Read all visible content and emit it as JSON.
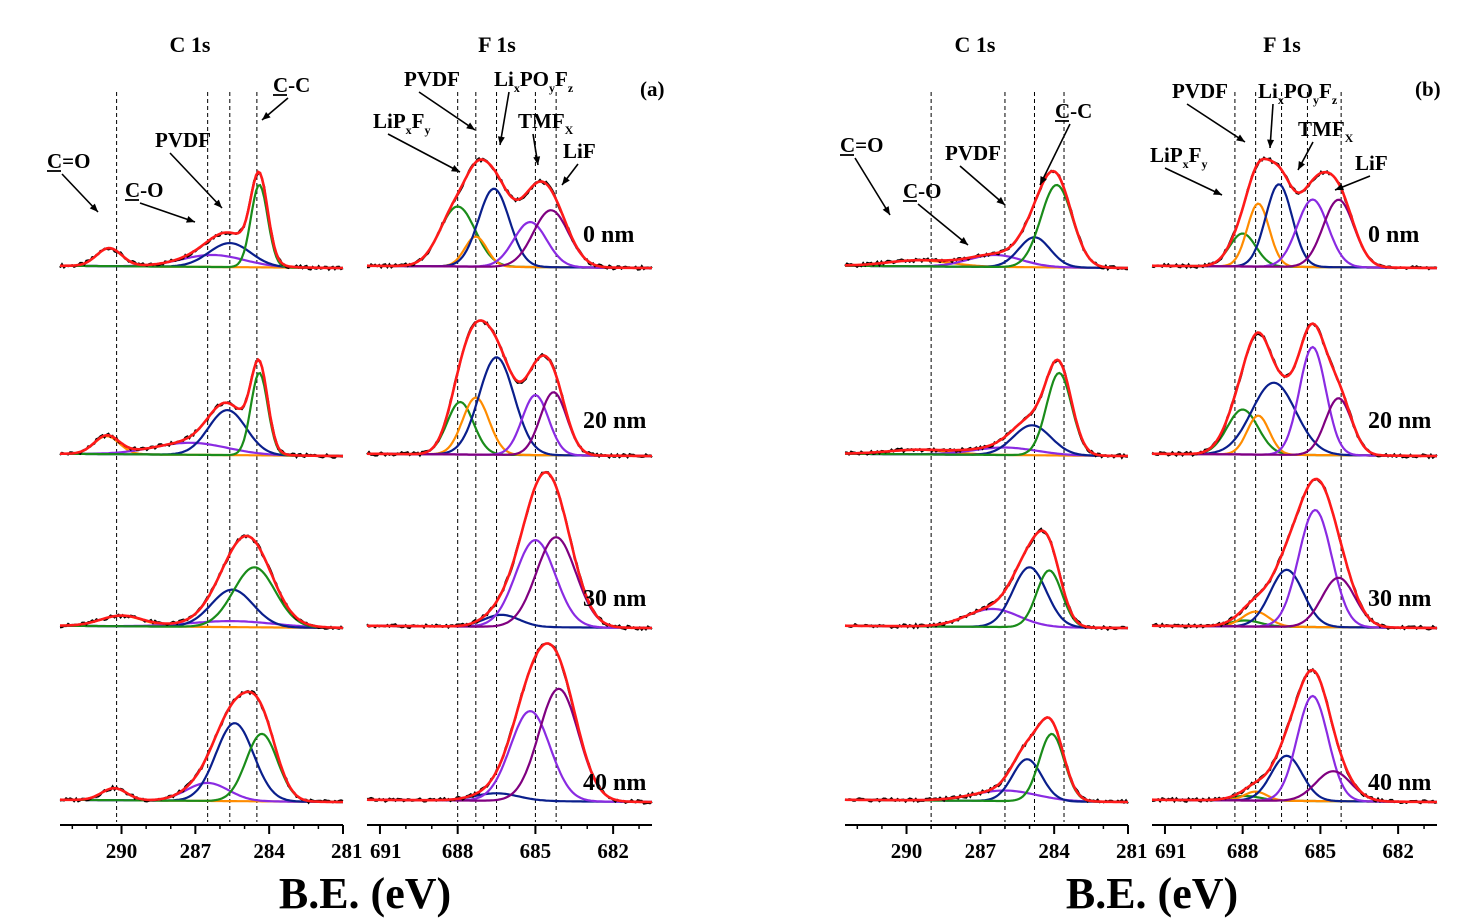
{
  "chart_data": {
    "type": "line",
    "x_unit": "B.E. (eV)",
    "x_label": "B.E. (eV)",
    "depths": [
      "0 nm",
      "20 nm",
      "30 nm",
      "40 nm"
    ],
    "colors": {
      "experimental": "#000000",
      "envelope": "#ff1a1a",
      "C-C": "#1a8c1a",
      "PVDF": "#0a1f8c",
      "C-O": "#8a2be2",
      "C=O": "#ff8c00",
      "LiPxFy": "#1a8c1a",
      "PVDF_F": "#ff8c00",
      "LixPOyFz": "#0a1f8c",
      "TMFx": "#8a2be2",
      "LiF": "#800080"
    },
    "panels": [
      {
        "label": "(a)",
        "regions": [
          {
            "title": "C 1s",
            "xlim": [
              292.5,
              281
            ],
            "ticks": [
              "290",
              "287",
              "284",
              "281"
            ],
            "tick_values": [
              290,
              287,
              284,
              281
            ],
            "components": [
              "C=O",
              "C-O",
              "PVDF",
              "C-C"
            ],
            "component_labels": [
              {
                "label": "C=O",
                "underline": "C"
              },
              {
                "label": "C-O",
                "underline": "C"
              },
              {
                "label": "PVDF",
                "underline": ""
              },
              {
                "label": "C-C",
                "underline": "C"
              }
            ],
            "reference_lines": [
              290.2,
              286.5,
              285.6,
              284.5
            ],
            "spectra": [
              {
                "depth": "0 nm",
                "peaks": [
                  {
                    "name": "C=O",
                    "center": 290.5,
                    "height": 0.12,
                    "fwhm": 1.2
                  },
                  {
                    "name": "C-O",
                    "center": 286.3,
                    "height": 0.08,
                    "fwhm": 3.0
                  },
                  {
                    "name": "PVDF",
                    "center": 285.6,
                    "height": 0.16,
                    "fwhm": 2.0
                  },
                  {
                    "name": "C-C",
                    "center": 284.4,
                    "height": 0.55,
                    "fwhm": 0.8
                  }
                ]
              },
              {
                "depth": "20 nm",
                "peaks": [
                  {
                    "name": "C=O",
                    "center": 290.6,
                    "height": 0.12,
                    "fwhm": 1.2
                  },
                  {
                    "name": "C-O",
                    "center": 287.2,
                    "height": 0.08,
                    "fwhm": 3.5
                  },
                  {
                    "name": "PVDF",
                    "center": 285.7,
                    "height": 0.3,
                    "fwhm": 1.8
                  },
                  {
                    "name": "C-C",
                    "center": 284.4,
                    "height": 0.55,
                    "fwhm": 0.8
                  }
                ]
              },
              {
                "depth": "30 nm",
                "peaks": [
                  {
                    "name": "C=O",
                    "center": 290.0,
                    "height": 0.07,
                    "fwhm": 2.0
                  },
                  {
                    "name": "C-O",
                    "center": 285.5,
                    "height": 0.04,
                    "fwhm": 4.0
                  },
                  {
                    "name": "PVDF",
                    "center": 285.5,
                    "height": 0.25,
                    "fwhm": 2.0
                  },
                  {
                    "name": "C-C",
                    "center": 284.6,
                    "height": 0.4,
                    "fwhm": 2.0
                  }
                ]
              },
              {
                "depth": "40 nm",
                "peaks": [
                  {
                    "name": "C=O",
                    "center": 290.3,
                    "height": 0.08,
                    "fwhm": 1.2
                  },
                  {
                    "name": "C-O",
                    "center": 286.5,
                    "height": 0.12,
                    "fwhm": 2.0
                  },
                  {
                    "name": "PVDF",
                    "center": 285.4,
                    "height": 0.52,
                    "fwhm": 1.8
                  },
                  {
                    "name": "C-C",
                    "center": 284.3,
                    "height": 0.45,
                    "fwhm": 1.5
                  }
                ]
              }
            ]
          },
          {
            "title": "F 1s",
            "xlim": [
              691.5,
              680.5
            ],
            "ticks": [
              "691",
              "688",
              "685",
              "682"
            ],
            "tick_values": [
              691,
              688,
              685,
              682
            ],
            "components": [
              "LiPxFy",
              "PVDF_F",
              "LixPOyFz",
              "TMFx",
              "LiF"
            ],
            "component_labels": [
              {
                "label": "LiPxFy"
              },
              {
                "label": "PVDF"
              },
              {
                "label": "LixPOyFz"
              },
              {
                "label": "TMFx"
              },
              {
                "label": "LiF"
              }
            ],
            "reference_lines": [
              688.0,
              687.3,
              686.5,
              685.0,
              684.2
            ],
            "spectra": [
              {
                "depth": "0 nm",
                "peaks": [
                  {
                    "name": "LiPxFy",
                    "center": 688.0,
                    "height": 0.4,
                    "fwhm": 1.6
                  },
                  {
                    "name": "PVDF_F",
                    "center": 687.3,
                    "height": 0.2,
                    "fwhm": 1.0
                  },
                  {
                    "name": "LixPOyFz",
                    "center": 686.6,
                    "height": 0.52,
                    "fwhm": 1.4
                  },
                  {
                    "name": "TMFx",
                    "center": 685.2,
                    "height": 0.3,
                    "fwhm": 1.5
                  },
                  {
                    "name": "LiF",
                    "center": 684.4,
                    "height": 0.38,
                    "fwhm": 1.6
                  }
                ]
              },
              {
                "depth": "20 nm",
                "peaks": [
                  {
                    "name": "LiPxFy",
                    "center": 687.9,
                    "height": 0.35,
                    "fwhm": 1.2
                  },
                  {
                    "name": "PVDF_F",
                    "center": 687.3,
                    "height": 0.38,
                    "fwhm": 1.2
                  },
                  {
                    "name": "LixPOyFz",
                    "center": 686.5,
                    "height": 0.65,
                    "fwhm": 1.6
                  },
                  {
                    "name": "TMFx",
                    "center": 685.0,
                    "height": 0.4,
                    "fwhm": 1.2
                  },
                  {
                    "name": "LiF",
                    "center": 684.3,
                    "height": 0.42,
                    "fwhm": 1.2
                  }
                ]
              },
              {
                "depth": "30 nm",
                "peaks": [
                  {
                    "name": "LixPOyFz",
                    "center": 686.3,
                    "height": 0.08,
                    "fwhm": 1.6
                  },
                  {
                    "name": "TMFx",
                    "center": 685.0,
                    "height": 0.58,
                    "fwhm": 1.8
                  },
                  {
                    "name": "LiF",
                    "center": 684.2,
                    "height": 0.6,
                    "fwhm": 1.8
                  }
                ]
              },
              {
                "depth": "40 nm",
                "peaks": [
                  {
                    "name": "LixPOyFz",
                    "center": 686.5,
                    "height": 0.05,
                    "fwhm": 2.0
                  },
                  {
                    "name": "TMFx",
                    "center": 685.2,
                    "height": 0.6,
                    "fwhm": 1.8
                  },
                  {
                    "name": "LiF",
                    "center": 684.1,
                    "height": 0.75,
                    "fwhm": 1.8
                  }
                ]
              }
            ]
          }
        ]
      },
      {
        "label": "(b)",
        "regions": [
          {
            "title": "C 1s",
            "xlim": [
              292.5,
              281
            ],
            "ticks": [
              "290",
              "287",
              "284",
              "281"
            ],
            "tick_values": [
              290,
              287,
              284,
              281
            ],
            "components": [
              "C=O",
              "C-O",
              "PVDF",
              "C-C"
            ],
            "component_labels": [
              {
                "label": "C=O",
                "underline": "C"
              },
              {
                "label": "C-O",
                "underline": "C"
              },
              {
                "label": "PVDF",
                "underline": ""
              },
              {
                "label": "C-C",
                "underline": "C"
              }
            ],
            "reference_lines": [
              289.0,
              286.0,
              284.8,
              283.6
            ],
            "spectra": [
              {
                "depth": "0 nm",
                "peaks": [
                  {
                    "name": "C=O",
                    "center": 289.5,
                    "height": 0.04,
                    "fwhm": 3.0
                  },
                  {
                    "name": "C-O",
                    "center": 286.4,
                    "height": 0.08,
                    "fwhm": 2.5
                  },
                  {
                    "name": "PVDF",
                    "center": 284.8,
                    "height": 0.2,
                    "fwhm": 1.5
                  },
                  {
                    "name": "C-C",
                    "center": 283.9,
                    "height": 0.55,
                    "fwhm": 1.5
                  }
                ]
              },
              {
                "depth": "20 nm",
                "peaks": [
                  {
                    "name": "C=O",
                    "center": 289.5,
                    "height": 0.03,
                    "fwhm": 3.0
                  },
                  {
                    "name": "C-O",
                    "center": 286.0,
                    "height": 0.05,
                    "fwhm": 3.0
                  },
                  {
                    "name": "PVDF",
                    "center": 284.9,
                    "height": 0.2,
                    "fwhm": 1.8
                  },
                  {
                    "name": "C-C",
                    "center": 283.8,
                    "height": 0.55,
                    "fwhm": 1.2
                  }
                ]
              },
              {
                "depth": "30 nm",
                "peaks": [
                  {
                    "name": "C-O",
                    "center": 286.5,
                    "height": 0.12,
                    "fwhm": 2.5
                  },
                  {
                    "name": "PVDF",
                    "center": 285.0,
                    "height": 0.4,
                    "fwhm": 1.6
                  },
                  {
                    "name": "C-C",
                    "center": 284.2,
                    "height": 0.38,
                    "fwhm": 1.2
                  }
                ]
              },
              {
                "depth": "40 nm",
                "peaks": [
                  {
                    "name": "C-O",
                    "center": 286.0,
                    "height": 0.07,
                    "fwhm": 3.0
                  },
                  {
                    "name": "PVDF",
                    "center": 285.1,
                    "height": 0.28,
                    "fwhm": 1.4
                  },
                  {
                    "name": "C-C",
                    "center": 284.1,
                    "height": 0.45,
                    "fwhm": 1.2
                  }
                ]
              }
            ]
          },
          {
            "title": "F 1s",
            "xlim": [
              691.5,
              680.5
            ],
            "ticks": [
              "691",
              "688",
              "685",
              "682"
            ],
            "tick_values": [
              691,
              688,
              685,
              682
            ],
            "components": [
              "LiPxFy",
              "PVDF_F",
              "LixPOyFz",
              "TMFx",
              "LiF"
            ],
            "component_labels": [
              {
                "label": "LiPxFy"
              },
              {
                "label": "PVDF"
              },
              {
                "label": "LixPOyFz"
              },
              {
                "label": "TMFx"
              },
              {
                "label": "LiF"
              }
            ],
            "reference_lines": [
              688.3,
              687.5,
              686.5,
              685.5,
              684.2
            ],
            "spectra": [
              {
                "depth": "0 nm",
                "peaks": [
                  {
                    "name": "LiPxFy",
                    "center": 688.0,
                    "height": 0.22,
                    "fwhm": 1.2
                  },
                  {
                    "name": "PVDF_F",
                    "center": 687.4,
                    "height": 0.42,
                    "fwhm": 1.0
                  },
                  {
                    "name": "LixPOyFz",
                    "center": 686.6,
                    "height": 0.55,
                    "fwhm": 1.2
                  },
                  {
                    "name": "TMFx",
                    "center": 685.3,
                    "height": 0.45,
                    "fwhm": 1.4
                  },
                  {
                    "name": "LiF",
                    "center": 684.3,
                    "height": 0.45,
                    "fwhm": 1.4
                  }
                ]
              },
              {
                "depth": "20 nm",
                "peaks": [
                  {
                    "name": "LiPxFy",
                    "center": 688.0,
                    "height": 0.3,
                    "fwhm": 1.4
                  },
                  {
                    "name": "PVDF_F",
                    "center": 687.4,
                    "height": 0.26,
                    "fwhm": 1.0
                  },
                  {
                    "name": "LixPOyFz",
                    "center": 686.8,
                    "height": 0.48,
                    "fwhm": 2.0
                  },
                  {
                    "name": "TMFx",
                    "center": 685.3,
                    "height": 0.72,
                    "fwhm": 1.2
                  },
                  {
                    "name": "LiF",
                    "center": 684.3,
                    "height": 0.38,
                    "fwhm": 1.2
                  }
                ]
              },
              {
                "depth": "30 nm",
                "peaks": [
                  {
                    "name": "LiPxFy",
                    "center": 687.9,
                    "height": 0.04,
                    "fwhm": 1.4
                  },
                  {
                    "name": "PVDF_F",
                    "center": 687.5,
                    "height": 0.1,
                    "fwhm": 1.2
                  },
                  {
                    "name": "LixPOyFz",
                    "center": 686.3,
                    "height": 0.38,
                    "fwhm": 1.5
                  },
                  {
                    "name": "TMFx",
                    "center": 685.2,
                    "height": 0.78,
                    "fwhm": 1.5
                  },
                  {
                    "name": "LiF",
                    "center": 684.3,
                    "height": 0.33,
                    "fwhm": 1.5
                  }
                ]
              },
              {
                "depth": "40 nm",
                "peaks": [
                  {
                    "name": "LiPxFy",
                    "center": 687.9,
                    "height": 0.03,
                    "fwhm": 1.4
                  },
                  {
                    "name": "PVDF_F",
                    "center": 687.5,
                    "height": 0.06,
                    "fwhm": 1.0
                  },
                  {
                    "name": "LixPOyFz",
                    "center": 686.3,
                    "height": 0.3,
                    "fwhm": 1.4
                  },
                  {
                    "name": "TMFx",
                    "center": 685.3,
                    "height": 0.7,
                    "fwhm": 1.4
                  },
                  {
                    "name": "LiF",
                    "center": 684.5,
                    "height": 0.2,
                    "fwhm": 1.6
                  }
                ]
              }
            ]
          }
        ]
      }
    ]
  }
}
